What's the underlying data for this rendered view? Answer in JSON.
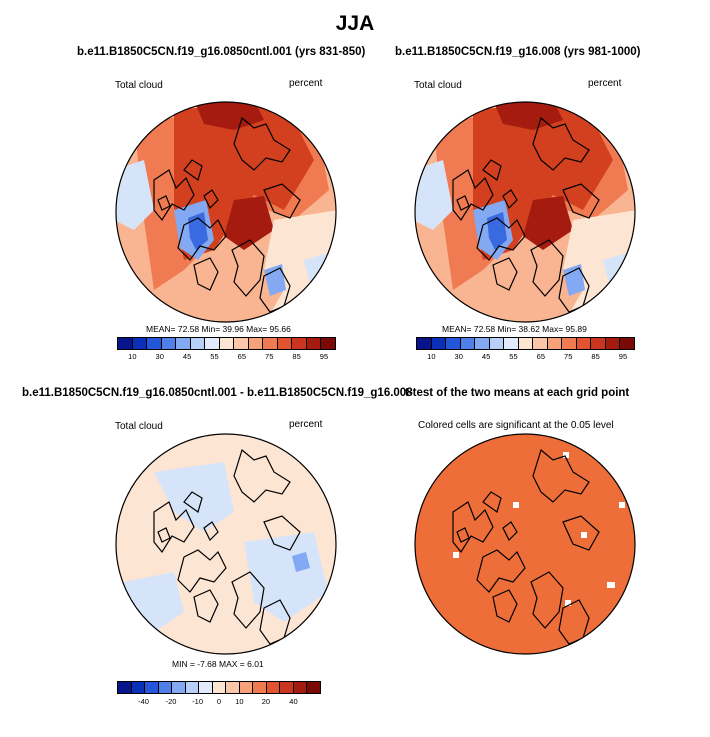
{
  "main_title": "JJA",
  "panels": {
    "p1": {
      "title": "b.e11.B1850C5CN.f19_g16.0850cntl.001 (yrs 831-850)",
      "left_label": "Total cloud",
      "right_label": "percent",
      "stats": "MEAN= 72.58  Min= 39.96  Max= 95.66"
    },
    "p2": {
      "title": "b.e11.B1850C5CN.f19_g16.008 (yrs 981-1000)",
      "left_label": "Total cloud",
      "right_label": "percent",
      "stats": "MEAN= 72.58  Min= 38.62  Max= 95.89"
    },
    "p3": {
      "title": "b.e11.B1850C5CN.f19_g16.0850cntl.001 - b.e11.B1850C5CN.f19_g16.008",
      "left_label": "Total cloud",
      "right_label": "percent",
      "stats": "MIN = -7.68  MAX =  6.01"
    },
    "p4": {
      "title": "t-test of the two means at each grid point",
      "center_label": "Colored cells are significant at the 0.05 level"
    }
  },
  "colorbar_abs": {
    "labels": [
      "10",
      "30",
      "45",
      "55",
      "65",
      "75",
      "85",
      "95"
    ],
    "colors": [
      "#08158a",
      "#0a2fb8",
      "#2356d9",
      "#4f80ea",
      "#83a9f2",
      "#b8cff7",
      "#e2ebfb",
      "#fde5d4",
      "#fbc7a8",
      "#f7a27b",
      "#f07a52",
      "#e3532f",
      "#cb3520",
      "#a51b10",
      "#7a0a05"
    ]
  },
  "colorbar_diff": {
    "labels": [
      "-40",
      "-20",
      "-10",
      "0",
      "10",
      "20",
      "40"
    ],
    "colors": [
      "#08158a",
      "#0a2fb8",
      "#2356d9",
      "#4f80ea",
      "#83a9f2",
      "#b8cff7",
      "#e2ebfb",
      "#fde5d4",
      "#fbc7a8",
      "#f7a27b",
      "#f07a52",
      "#e3532f",
      "#cb3520",
      "#a51b10",
      "#7a0a05"
    ]
  },
  "map_colors": {
    "deep_red": "#a51b10",
    "red": "#d2401f",
    "orange": "#f07a52",
    "light_orange": "#f9b591",
    "peach": "#fde5d4",
    "light_blue": "#d6e4fa",
    "blue": "#83a9f2",
    "dark_blue": "#3a6adf",
    "sig_orange": "#ee6e3a"
  }
}
